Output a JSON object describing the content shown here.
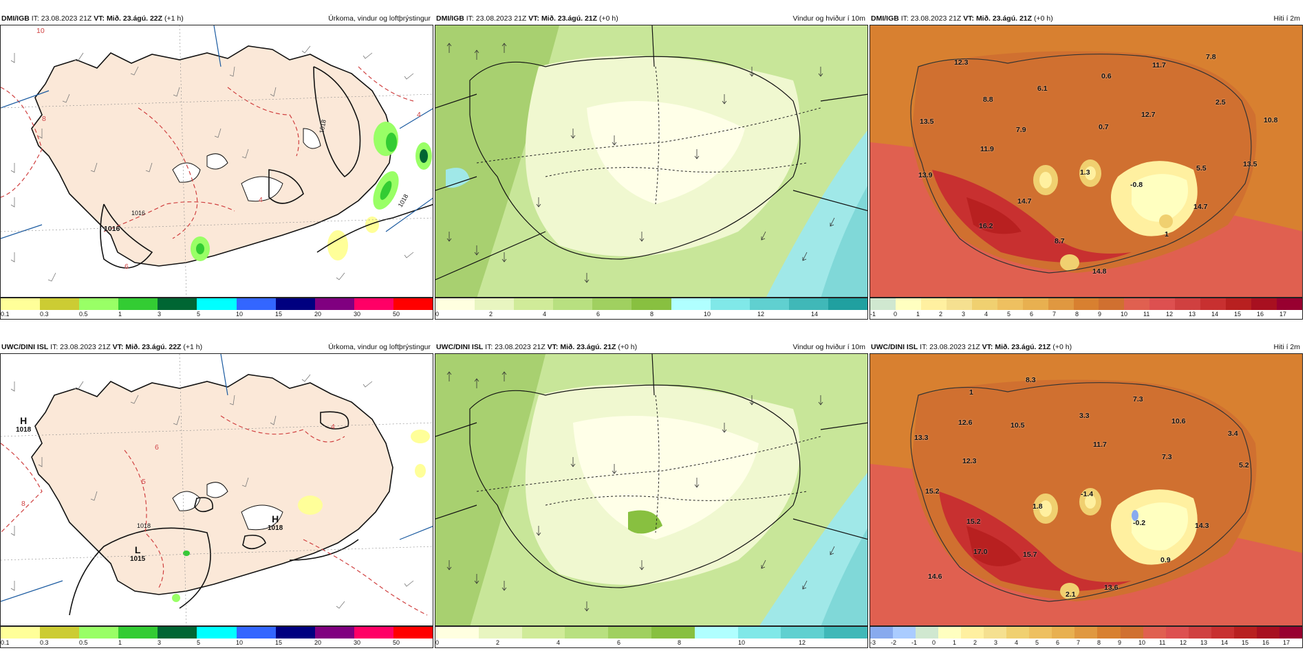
{
  "colors": {
    "precip_scale": [
      "#ffff99",
      "#cccc33",
      "#99ff66",
      "#33cc33",
      "#006633",
      "#00ffff",
      "#3366ff",
      "#000080",
      "#800080",
      "#ff0066",
      "#ff0000"
    ],
    "wind_scale": [
      "#ffffe0",
      "#e8f5c0",
      "#d0eb99",
      "#b8e080",
      "#a0d060",
      "#88c040",
      "#b0ffff",
      "#80e8e8",
      "#60d0d0",
      "#40b8b8",
      "#20a0a0"
    ],
    "temp_scale_top": [
      "#d0e8d0",
      "#ffffc0",
      "#fff0a0",
      "#f5e090",
      "#f0d070",
      "#eec060",
      "#e8b050",
      "#e09840",
      "#d88030",
      "#d07030",
      "#e06050",
      "#dd5050",
      "#d04040",
      "#c83030",
      "#b82020",
      "#a81020",
      "#980030"
    ],
    "temp_scale_bottom": [
      "#88aaee",
      "#aaccff",
      "#d0e8d0",
      "#ffffc0",
      "#fff0a0",
      "#f5e090",
      "#f0d070",
      "#eec060",
      "#e8b050",
      "#e09840",
      "#d88030",
      "#d07030",
      "#e06050",
      "#dd5050",
      "#d04040",
      "#c83030",
      "#b82020",
      "#a81020",
      "#980030"
    ]
  },
  "panels": [
    {
      "source": "DMI/IGB",
      "it_label": "IT: 23.08.2023 21Z",
      "vt_label": "VT:",
      "vt_value": "Mið. 23.ágú. 22Z",
      "lead": "(+1 h)",
      "variable": "Úrkoma, vindur og loftþrýstingur",
      "kind": "precip",
      "scale_ticks": [
        "0.1",
        "0.3",
        "0.5",
        "1",
        "3",
        "5",
        "10",
        "15",
        "20",
        "30",
        "50"
      ],
      "labels": [
        "10",
        "1016",
        "1016",
        "1018",
        "1018",
        "6",
        "4",
        "4",
        "8"
      ]
    },
    {
      "source": "DMI/IGB",
      "it_label": "IT: 23.08.2023 21Z",
      "vt_label": "VT:",
      "vt_value": "Mið. 23.ágú. 21Z",
      "lead": "(+0 h)",
      "variable": "Vindur og hviður í 10m",
      "kind": "wind",
      "scale_ticks": [
        "0",
        "2",
        "4",
        "6",
        "8",
        "10",
        "12",
        "14"
      ],
      "labels": []
    },
    {
      "source": "DMI/IGB",
      "it_label": "IT: 23.08.2023 21Z",
      "vt_label": "VT:",
      "vt_value": "Mið. 23.ágú. 21Z",
      "lead": "(+0 h)",
      "variable": "Hiti í 2m",
      "kind": "temp_top",
      "scale_ticks": [
        "-1",
        "0",
        "1",
        "2",
        "3",
        "4",
        "5",
        "6",
        "7",
        "8",
        "9",
        "10",
        "11",
        "12",
        "13",
        "14",
        "15",
        "16",
        "17"
      ],
      "labels": [
        "12.3",
        "11.7",
        "7.8",
        "0.6",
        "6.1",
        "8.8",
        "12.7",
        "2.5",
        "13.5",
        "7.9",
        "0.7",
        "10.8",
        "11.9",
        "13.9",
        "1.3",
        "-0.8",
        "5.5",
        "13.5",
        "14.7",
        "14.7",
        "16.2",
        "8.7",
        "1",
        "14.8"
      ]
    },
    {
      "source": "UWC/DINI ISL",
      "it_label": "IT: 23.08.2023 21Z",
      "vt_label": "VT:",
      "vt_value": "Mið. 23.ágú. 22Z",
      "lead": "(+1 h)",
      "variable": "Úrkoma, vindur og loftþrýstingur",
      "kind": "precip",
      "scale_ticks": [
        "0.1",
        "0.3",
        "0.5",
        "1",
        "3",
        "5",
        "10",
        "15",
        "20",
        "30",
        "50"
      ],
      "labels": [
        "H",
        "1018",
        "H",
        "1018",
        "L",
        "1015",
        "1018",
        "6",
        "4",
        "8",
        "5"
      ]
    },
    {
      "source": "UWC/DINI ISL",
      "it_label": "IT: 23.08.2023 21Z",
      "vt_label": "VT:",
      "vt_value": "Mið. 23.ágú. 21Z",
      "lead": "(+0 h)",
      "variable": "Vindur og hviður í 10m",
      "kind": "wind",
      "scale_ticks": [
        "0",
        "2",
        "4",
        "6",
        "8",
        "10",
        "12"
      ],
      "labels": []
    },
    {
      "source": "UWC/DINI ISL",
      "it_label": "IT: 23.08.2023 21Z",
      "vt_label": "VT:",
      "vt_value": "Mið. 23.ágú. 21Z",
      "lead": "(+0 h)",
      "variable": "Hiti í 2m",
      "kind": "temp_bottom",
      "scale_ticks": [
        "-3",
        "-2",
        "-1",
        "0",
        "1",
        "2",
        "3",
        "4",
        "5",
        "6",
        "7",
        "8",
        "9",
        "10",
        "11",
        "12",
        "13",
        "14",
        "15",
        "16",
        "17"
      ],
      "labels": [
        "8.3",
        "1",
        "7.3",
        "12.6",
        "10.5",
        "3.3",
        "10.6",
        "3.4",
        "13.3",
        "11.7",
        "12.3",
        "7.3",
        "5.2",
        "15.2",
        "1.8",
        "-1.4",
        "-0.2",
        "15.2",
        "17.0",
        "15.7",
        "14.3",
        "14.6",
        "0.9",
        "2.1",
        "13.6"
      ]
    }
  ]
}
